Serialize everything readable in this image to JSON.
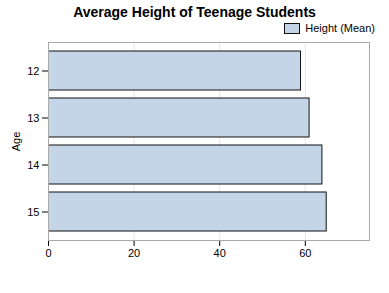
{
  "chart_data": {
    "type": "bar",
    "orientation": "horizontal",
    "title": "Average Height of Teenage Students",
    "ylabel": "Age",
    "categories": [
      "12",
      "13",
      "14",
      "15"
    ],
    "series": [
      {
        "name": "Height (Mean)",
        "color": "#c5d5e8",
        "values": [
          59.0,
          61.0,
          64.0,
          65.0
        ]
      }
    ],
    "xlim": [
      0,
      75
    ],
    "xticks": [
      0,
      20,
      40,
      60
    ],
    "grid": true,
    "legend": "upper right"
  }
}
